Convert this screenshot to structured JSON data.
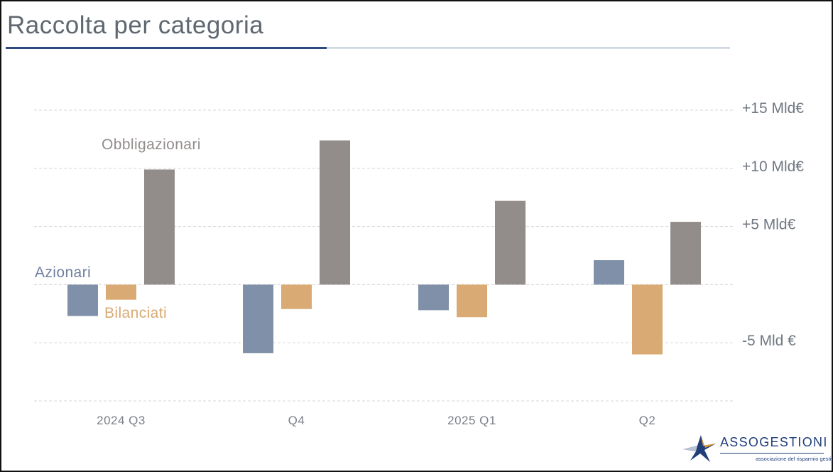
{
  "header": {
    "title": "Raccolta per categoria"
  },
  "logo": {
    "name": "ASSOGESTIONI",
    "tagline": "associazione del risparmio gestito",
    "mark": "star-logo-icon"
  },
  "colors": {
    "azionari": "#8090a8",
    "bilanciati": "#d9aa73",
    "obbligazionari": "#928d8b",
    "grid": "#d6d6d6",
    "axis_text": "#7a8088"
  },
  "chart_data": {
    "type": "bar",
    "title": "Raccolta per categoria",
    "categories": [
      "2024 Q3",
      "Q4",
      "2025 Q1",
      "Q2"
    ],
    "series": [
      {
        "name": "Azionari",
        "values": [
          -2.7,
          -5.9,
          -2.2,
          2.1
        ]
      },
      {
        "name": "Bilanciati",
        "values": [
          -1.3,
          -2.1,
          -2.8,
          -6.0
        ]
      },
      {
        "name": "Obbligazionari",
        "values": [
          9.9,
          12.4,
          7.2,
          5.4
        ]
      }
    ],
    "ylim": [
      -10,
      15
    ],
    "gridlines": [
      15,
      10,
      5,
      0,
      -5,
      -10
    ],
    "y_tick_labels": [
      {
        "value": 15,
        "label": "+15 Mld€"
      },
      {
        "value": 10,
        "label": "+10 Mld€"
      },
      {
        "value": 5,
        "label": "+5 Mld€"
      },
      {
        "value": -5,
        "label": "-5 Mld €"
      }
    ],
    "grid": true,
    "legend": "inline labels near first group"
  }
}
